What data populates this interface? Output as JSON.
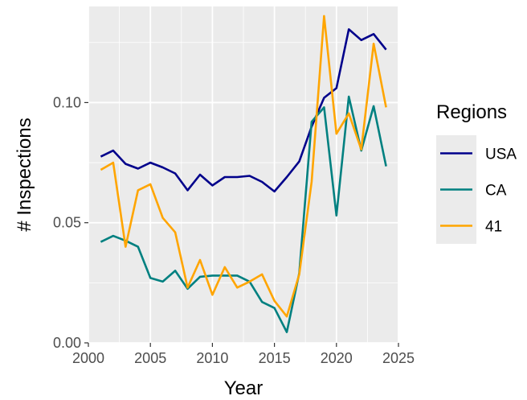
{
  "chart_data": {
    "type": "line",
    "xlabel": "Year",
    "ylabel": "# Inspections",
    "xlim": [
      2000,
      2025
    ],
    "ylim": [
      0,
      0.14
    ],
    "x_ticks": [
      2000,
      2005,
      2010,
      2015,
      2020,
      2025
    ],
    "x_tick_labels": [
      "2000",
      "2005",
      "2010",
      "2015",
      "2020",
      "2025"
    ],
    "y_ticks": [
      0.0,
      0.05,
      0.1
    ],
    "y_tick_labels": [
      "0.00",
      "0.05",
      "0.10"
    ],
    "grid": true,
    "legend": {
      "title": "Regions",
      "position": "right"
    },
    "x": [
      2001,
      2002,
      2003,
      2004,
      2005,
      2006,
      2007,
      2008,
      2009,
      2010,
      2011,
      2012,
      2013,
      2014,
      2015,
      2016,
      2017,
      2018,
      2019,
      2020,
      2021,
      2022,
      2023,
      2024
    ],
    "series": [
      {
        "name": "USA",
        "color": "#00008B",
        "values": [
          0.0775,
          0.08,
          0.0745,
          0.0725,
          0.075,
          0.073,
          0.0705,
          0.0635,
          0.07,
          0.0655,
          0.069,
          0.069,
          0.0695,
          0.067,
          0.063,
          0.069,
          0.0755,
          0.09,
          0.102,
          0.106,
          0.1305,
          0.126,
          0.1285,
          0.122
        ]
      },
      {
        "name": "CA",
        "color": "#008080",
        "values": [
          0.042,
          0.0445,
          0.0425,
          0.04,
          0.027,
          0.0255,
          0.03,
          0.0225,
          0.0275,
          0.028,
          0.028,
          0.028,
          0.0255,
          0.017,
          0.0145,
          0.0045,
          0.029,
          0.092,
          0.098,
          0.053,
          0.1025,
          0.08,
          0.0985,
          0.0735
        ]
      },
      {
        "name": "41",
        "color": "#FFA500",
        "values": [
          0.072,
          0.075,
          0.04,
          0.0635,
          0.066,
          0.052,
          0.046,
          0.023,
          0.0345,
          0.02,
          0.0315,
          0.023,
          0.0255,
          0.0285,
          0.0175,
          0.011,
          0.0285,
          0.067,
          0.136,
          0.087,
          0.0955,
          0.0805,
          0.1245,
          0.098
        ]
      }
    ]
  }
}
